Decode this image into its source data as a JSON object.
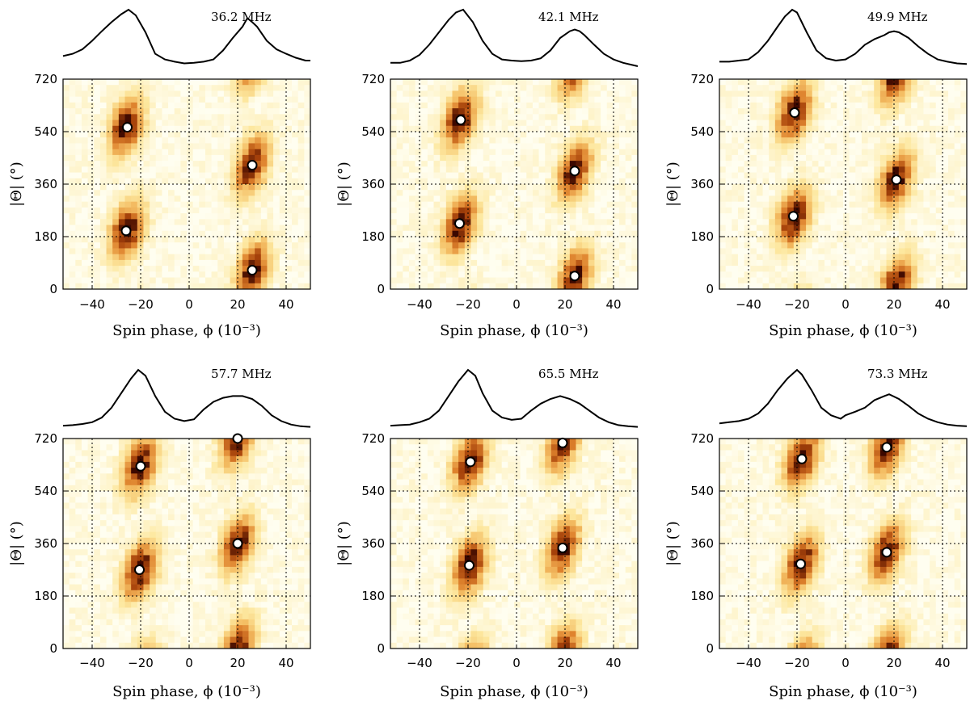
{
  "figure": {
    "xlabel": "Spin phase, ϕ (10⁻³)",
    "ylabel": "|Θ| (°)"
  },
  "chart_data": [
    {
      "type": "heatmap",
      "title": "36.2 MHz",
      "xlabel": "Spin phase, ϕ (10⁻³)",
      "ylabel": "|Θ| (°)",
      "xlim": [
        -52,
        50
      ],
      "ylim": [
        0,
        720
      ],
      "xticks": [
        -40,
        -20,
        0,
        20,
        40
      ],
      "yticks": [
        0,
        180,
        360,
        540,
        720
      ],
      "grid": true,
      "peaks": [
        {
          "phi": -25.5,
          "theta": 555
        },
        {
          "phi": -26,
          "theta": 200
        },
        {
          "phi": 26,
          "theta": 425
        },
        {
          "phi": 26,
          "theta": 65
        }
      ],
      "profile": {
        "x": [
          -52,
          -48,
          -44,
          -40,
          -36,
          -32,
          -28,
          -25,
          -22,
          -18,
          -14,
          -10,
          -6,
          -2,
          2,
          6,
          10,
          14,
          18,
          22,
          24,
          26,
          28,
          32,
          36,
          40,
          44,
          48,
          50
        ],
        "y": [
          0.18,
          0.22,
          0.3,
          0.45,
          0.62,
          0.78,
          0.92,
          1.0,
          0.9,
          0.6,
          0.22,
          0.12,
          0.08,
          0.05,
          0.06,
          0.08,
          0.12,
          0.28,
          0.5,
          0.7,
          0.85,
          0.78,
          0.7,
          0.45,
          0.3,
          0.22,
          0.15,
          0.1,
          0.1
        ]
      }
    },
    {
      "type": "heatmap",
      "title": "42.1 MHz",
      "xlabel": "Spin phase, ϕ (10⁻³)",
      "ylabel": "|Θ| (°)",
      "xlim": [
        -52,
        50
      ],
      "ylim": [
        0,
        720
      ],
      "xticks": [
        -40,
        -20,
        0,
        20,
        40
      ],
      "yticks": [
        0,
        180,
        360,
        540,
        720
      ],
      "grid": true,
      "peaks": [
        {
          "phi": -23,
          "theta": 580
        },
        {
          "phi": -23.5,
          "theta": 225
        },
        {
          "phi": 24,
          "theta": 405
        },
        {
          "phi": 24,
          "theta": 45
        }
      ],
      "profile": {
        "x": [
          -52,
          -48,
          -44,
          -40,
          -36,
          -32,
          -28,
          -25,
          -22,
          -18,
          -14,
          -10,
          -6,
          -2,
          2,
          6,
          10,
          14,
          18,
          22,
          24,
          26,
          28,
          32,
          36,
          40,
          44,
          48,
          50
        ],
        "y": [
          0.06,
          0.06,
          0.1,
          0.2,
          0.38,
          0.6,
          0.82,
          0.95,
          1.0,
          0.78,
          0.45,
          0.22,
          0.12,
          0.1,
          0.09,
          0.1,
          0.14,
          0.28,
          0.5,
          0.62,
          0.65,
          0.62,
          0.55,
          0.38,
          0.22,
          0.12,
          0.06,
          0.02,
          0.0
        ]
      }
    },
    {
      "type": "heatmap",
      "title": "49.9 MHz",
      "xlabel": "Spin phase, ϕ (10⁻³)",
      "ylabel": "|Θ| (°)",
      "xlim": [
        -52,
        50
      ],
      "ylim": [
        0,
        720
      ],
      "xticks": [
        -40,
        -20,
        0,
        20,
        40
      ],
      "yticks": [
        0,
        180,
        360,
        540,
        720
      ],
      "grid": true,
      "peaks": [
        {
          "phi": -21,
          "theta": 605
        },
        {
          "phi": -21.5,
          "theta": 250
        },
        {
          "phi": 21,
          "theta": 375
        }
      ],
      "profile": {
        "x": [
          -52,
          -48,
          -44,
          -40,
          -36,
          -32,
          -28,
          -25,
          -22,
          -20,
          -16,
          -12,
          -8,
          -4,
          0,
          4,
          8,
          12,
          16,
          18,
          20,
          22,
          26,
          30,
          34,
          38,
          42,
          46,
          50
        ],
        "y": [
          0.08,
          0.08,
          0.1,
          0.12,
          0.25,
          0.45,
          0.7,
          0.88,
          1.0,
          0.95,
          0.6,
          0.28,
          0.14,
          0.1,
          0.12,
          0.22,
          0.38,
          0.48,
          0.55,
          0.6,
          0.62,
          0.6,
          0.5,
          0.35,
          0.22,
          0.12,
          0.08,
          0.05,
          0.04
        ]
      }
    },
    {
      "type": "heatmap",
      "title": "57.7 MHz",
      "xlabel": "Spin phase, ϕ (10⁻³)",
      "ylabel": "|Θ| (°)",
      "xlim": [
        -52,
        50
      ],
      "ylim": [
        0,
        720
      ],
      "xticks": [
        -40,
        -20,
        0,
        20,
        40
      ],
      "yticks": [
        0,
        180,
        360,
        540,
        720
      ],
      "grid": true,
      "peaks": [
        {
          "phi": -20,
          "theta": 625
        },
        {
          "phi": -20.5,
          "theta": 270
        },
        {
          "phi": 20,
          "theta": 720
        },
        {
          "phi": 20,
          "theta": 360
        }
      ],
      "profile": {
        "x": [
          -52,
          -48,
          -44,
          -40,
          -36,
          -32,
          -28,
          -24,
          -21,
          -18,
          -14,
          -10,
          -6,
          -2,
          2,
          6,
          10,
          14,
          18,
          22,
          26,
          30,
          34,
          38,
          42,
          46,
          50
        ],
        "y": [
          0.04,
          0.05,
          0.07,
          0.1,
          0.18,
          0.35,
          0.6,
          0.85,
          1.0,
          0.9,
          0.55,
          0.28,
          0.16,
          0.12,
          0.15,
          0.32,
          0.45,
          0.52,
          0.55,
          0.55,
          0.5,
          0.38,
          0.22,
          0.12,
          0.06,
          0.03,
          0.02
        ]
      }
    },
    {
      "type": "heatmap",
      "title": "65.5 MHz",
      "xlabel": "Spin phase, ϕ (10⁻³)",
      "ylabel": "|Θ| (°)",
      "xlim": [
        -52,
        50
      ],
      "ylim": [
        0,
        720
      ],
      "xticks": [
        -40,
        -20,
        0,
        20,
        40
      ],
      "yticks": [
        0,
        180,
        360,
        540,
        720
      ],
      "grid": true,
      "peaks": [
        {
          "phi": -19,
          "theta": 640
        },
        {
          "phi": -19.5,
          "theta": 285
        },
        {
          "phi": 19,
          "theta": 705
        },
        {
          "phi": 19,
          "theta": 345
        }
      ],
      "profile": {
        "x": [
          -52,
          -48,
          -44,
          -40,
          -36,
          -32,
          -28,
          -24,
          -20,
          -17,
          -14,
          -10,
          -6,
          -2,
          2,
          6,
          10,
          14,
          18,
          22,
          26,
          30,
          34,
          38,
          42,
          46,
          50
        ],
        "y": [
          0.04,
          0.05,
          0.06,
          0.1,
          0.16,
          0.3,
          0.55,
          0.8,
          1.0,
          0.9,
          0.6,
          0.3,
          0.18,
          0.14,
          0.16,
          0.3,
          0.42,
          0.5,
          0.55,
          0.5,
          0.42,
          0.3,
          0.18,
          0.1,
          0.05,
          0.03,
          0.02
        ]
      }
    },
    {
      "type": "heatmap",
      "title": "73.3 MHz",
      "xlabel": "Spin phase, ϕ (10⁻³)",
      "ylabel": "|Θ| (°)",
      "xlim": [
        -52,
        50
      ],
      "ylim": [
        0,
        720
      ],
      "xticks": [
        -40,
        -20,
        0,
        20,
        40
      ],
      "yticks": [
        0,
        180,
        360,
        540,
        720
      ],
      "grid": true,
      "peaks": [
        {
          "phi": -18,
          "theta": 650
        },
        {
          "phi": -18.5,
          "theta": 290
        },
        {
          "phi": 17,
          "theta": 690
        },
        {
          "phi": 17,
          "theta": 330
        }
      ],
      "profile": {
        "x": [
          -52,
          -48,
          -44,
          -40,
          -36,
          -32,
          -28,
          -24,
          -20,
          -18,
          -14,
          -10,
          -6,
          -2,
          0,
          4,
          8,
          12,
          16,
          18,
          22,
          26,
          30,
          34,
          38,
          42,
          46,
          50
        ],
        "y": [
          0.08,
          0.1,
          0.12,
          0.16,
          0.25,
          0.42,
          0.65,
          0.85,
          1.0,
          0.92,
          0.65,
          0.35,
          0.22,
          0.16,
          0.22,
          0.28,
          0.35,
          0.48,
          0.55,
          0.58,
          0.5,
          0.38,
          0.25,
          0.16,
          0.1,
          0.06,
          0.04,
          0.03
        ]
      }
    }
  ]
}
